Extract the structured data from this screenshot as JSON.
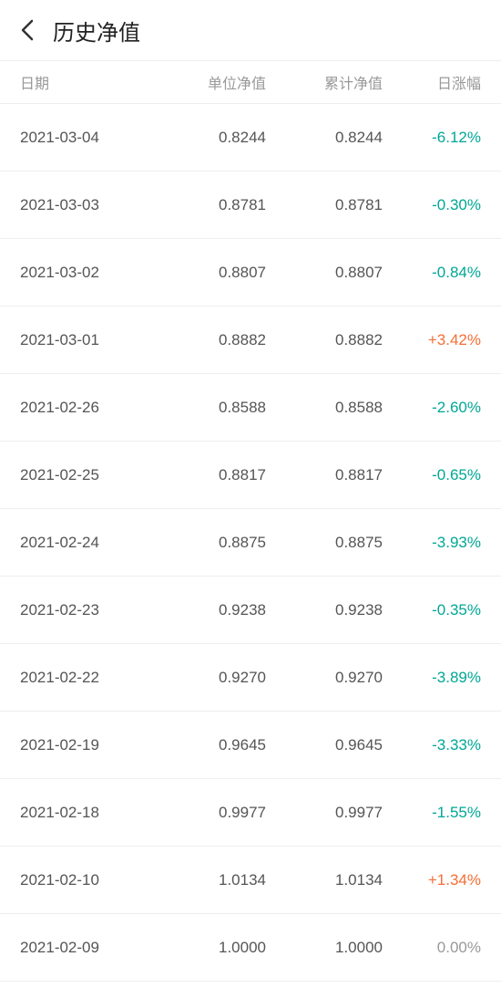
{
  "header": {
    "title": "历史净值"
  },
  "columns": {
    "date": "日期",
    "unit_nav": "单位净值",
    "cum_nav": "累计净值",
    "daily_pct": "日涨幅"
  },
  "colors": {
    "down": "#00a796",
    "up": "#f56e36",
    "zero": "#999999",
    "border": "#eeeeee",
    "header_text": "#999999",
    "body_text": "#555555",
    "title_text": "#222222",
    "background": "#ffffff"
  },
  "rows": [
    {
      "date": "2021-03-04",
      "unit_nav": "0.8244",
      "cum_nav": "0.8244",
      "pct": "-6.12%",
      "dir": "down"
    },
    {
      "date": "2021-03-03",
      "unit_nav": "0.8781",
      "cum_nav": "0.8781",
      "pct": "-0.30%",
      "dir": "down"
    },
    {
      "date": "2021-03-02",
      "unit_nav": "0.8807",
      "cum_nav": "0.8807",
      "pct": "-0.84%",
      "dir": "down"
    },
    {
      "date": "2021-03-01",
      "unit_nav": "0.8882",
      "cum_nav": "0.8882",
      "pct": "+3.42%",
      "dir": "up"
    },
    {
      "date": "2021-02-26",
      "unit_nav": "0.8588",
      "cum_nav": "0.8588",
      "pct": "-2.60%",
      "dir": "down"
    },
    {
      "date": "2021-02-25",
      "unit_nav": "0.8817",
      "cum_nav": "0.8817",
      "pct": "-0.65%",
      "dir": "down"
    },
    {
      "date": "2021-02-24",
      "unit_nav": "0.8875",
      "cum_nav": "0.8875",
      "pct": "-3.93%",
      "dir": "down"
    },
    {
      "date": "2021-02-23",
      "unit_nav": "0.9238",
      "cum_nav": "0.9238",
      "pct": "-0.35%",
      "dir": "down"
    },
    {
      "date": "2021-02-22",
      "unit_nav": "0.9270",
      "cum_nav": "0.9270",
      "pct": "-3.89%",
      "dir": "down"
    },
    {
      "date": "2021-02-19",
      "unit_nav": "0.9645",
      "cum_nav": "0.9645",
      "pct": "-3.33%",
      "dir": "down"
    },
    {
      "date": "2021-02-18",
      "unit_nav": "0.9977",
      "cum_nav": "0.9977",
      "pct": "-1.55%",
      "dir": "down"
    },
    {
      "date": "2021-02-10",
      "unit_nav": "1.0134",
      "cum_nav": "1.0134",
      "pct": "+1.34%",
      "dir": "up"
    },
    {
      "date": "2021-02-09",
      "unit_nav": "1.0000",
      "cum_nav": "1.0000",
      "pct": "0.00%",
      "dir": "zero"
    }
  ]
}
